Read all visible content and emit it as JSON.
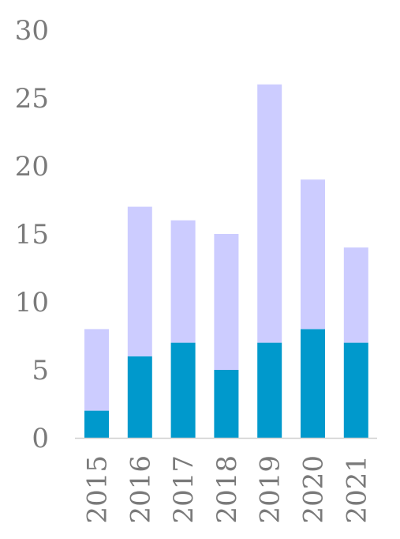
{
  "chart_data": {
    "type": "bar",
    "stacked": true,
    "categories": [
      "2015",
      "2016",
      "2017",
      "2018",
      "2019",
      "2020",
      "2021"
    ],
    "series": [
      {
        "values": [
          2,
          6,
          7,
          5,
          7,
          8,
          7
        ],
        "color": "#0099cc"
      },
      {
        "values": [
          6,
          11,
          9,
          10,
          19,
          11,
          7
        ],
        "color": "#ccccff"
      }
    ],
    "totals": [
      8,
      17,
      16,
      15,
      26,
      19,
      14
    ],
    "ylim": [
      0,
      30
    ],
    "yticks": [
      "0",
      "5",
      "10",
      "15",
      "20",
      "25",
      "30"
    ],
    "yticks_values": [
      0,
      5,
      10,
      15,
      20,
      25,
      30
    ],
    "grid": false,
    "legend": "none",
    "title": "",
    "xlabel": "",
    "ylabel": ""
  }
}
